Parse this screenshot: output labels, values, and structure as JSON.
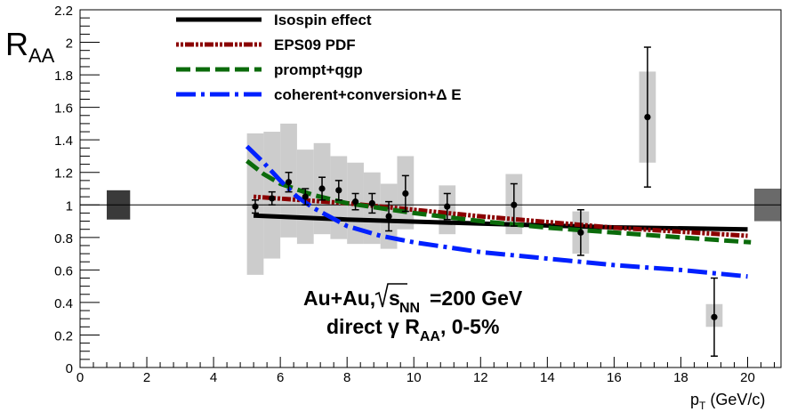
{
  "chart_data": {
    "type": "scatter",
    "title": "",
    "xlabel": "p_T (GeV/c)",
    "ylabel": "R_AA",
    "xlim": [
      0,
      21
    ],
    "ylim": [
      0,
      2.2
    ],
    "xticks": [
      0,
      2,
      4,
      6,
      8,
      10,
      12,
      14,
      16,
      18,
      20
    ],
    "yticks": [
      0,
      0.2,
      0.4,
      0.6,
      0.8,
      1,
      1.2,
      1.4,
      1.6,
      1.8,
      2,
      2.2
    ],
    "xtick_labels": [
      "0",
      "2",
      "4",
      "6",
      "8",
      "10",
      "12",
      "14",
      "16",
      "18",
      "20"
    ],
    "ytick_labels": [
      "0",
      "0.2",
      "0.4",
      "0.6",
      "0.8",
      "1",
      "1.2",
      "1.4",
      "1.6",
      "1.8",
      "2",
      "2.2"
    ],
    "grid": false,
    "legend_position": "top-left",
    "reference_line": 1,
    "normalization_boxes": [
      {
        "x": [
          0.8,
          1.5
        ],
        "y": [
          0.91,
          1.09
        ],
        "color": "#3a3a3a"
      },
      {
        "x": [
          20.2,
          21.0
        ],
        "y": [
          0.9,
          1.1
        ],
        "color": "#6a6a6a"
      }
    ],
    "data_points": [
      {
        "x": 5.25,
        "y": 0.99,
        "stat_err": 0.04,
        "sys_low": 0.57,
        "sys_high": 1.44,
        "sys_width": 0.5
      },
      {
        "x": 5.75,
        "y": 1.04,
        "stat_err": 0.04,
        "sys_low": 0.67,
        "sys_high": 1.45,
        "sys_width": 0.5
      },
      {
        "x": 6.25,
        "y": 1.14,
        "stat_err": 0.06,
        "sys_low": 0.8,
        "sys_high": 1.5,
        "sys_width": 0.5
      },
      {
        "x": 6.75,
        "y": 1.05,
        "stat_err": 0.05,
        "sys_low": 0.76,
        "sys_high": 1.34,
        "sys_width": 0.5
      },
      {
        "x": 7.25,
        "y": 1.1,
        "stat_err": 0.07,
        "sys_low": 0.82,
        "sys_high": 1.38,
        "sys_width": 0.5
      },
      {
        "x": 7.75,
        "y": 1.09,
        "stat_err": 0.06,
        "sys_low": 0.79,
        "sys_high": 1.3,
        "sys_width": 0.5
      },
      {
        "x": 8.25,
        "y": 1.02,
        "stat_err": 0.05,
        "sys_low": 0.76,
        "sys_high": 1.26,
        "sys_width": 0.5
      },
      {
        "x": 8.75,
        "y": 1.01,
        "stat_err": 0.06,
        "sys_low": 0.76,
        "sys_high": 1.2,
        "sys_width": 0.5
      },
      {
        "x": 9.25,
        "y": 0.93,
        "stat_err": 0.09,
        "sys_low": 0.73,
        "sys_high": 1.13,
        "sys_width": 0.5
      },
      {
        "x": 9.75,
        "y": 1.07,
        "stat_err": 0.11,
        "sys_low": 0.85,
        "sys_high": 1.3,
        "sys_width": 0.5
      },
      {
        "x": 11.0,
        "y": 0.99,
        "stat_err": 0.08,
        "sys_low": 0.82,
        "sys_high": 1.12,
        "sys_width": 0.5
      },
      {
        "x": 13.0,
        "y": 1.0,
        "stat_err": 0.13,
        "sys_low": 0.82,
        "sys_high": 1.19,
        "sys_width": 0.5
      },
      {
        "x": 15.0,
        "y": 0.83,
        "stat_err": 0.14,
        "sys_low": 0.7,
        "sys_high": 0.96,
        "sys_width": 0.5
      },
      {
        "x": 17.0,
        "y": 1.54,
        "stat_err": 0.43,
        "sys_low": 1.26,
        "sys_high": 1.82,
        "sys_width": 0.5
      },
      {
        "x": 19.0,
        "y": 0.31,
        "stat_err": 0.24,
        "sys_low": 0.25,
        "sys_high": 0.39,
        "sys_width": 0.5
      }
    ],
    "series": [
      {
        "name": "Isospin effect",
        "color": "#000000",
        "style": "solid",
        "points": [
          [
            5.2,
            0.935
          ],
          [
            8,
            0.91
          ],
          [
            12,
            0.885
          ],
          [
            16,
            0.862
          ],
          [
            20,
            0.85
          ]
        ]
      },
      {
        "name": "EPS09 PDF",
        "color": "#8b0000",
        "style": "dotted",
        "points": [
          [
            5.2,
            1.05
          ],
          [
            8,
            1.01
          ],
          [
            12,
            0.93
          ],
          [
            16,
            0.86
          ],
          [
            20,
            0.81
          ]
        ]
      },
      {
        "name": "prompt+qgp",
        "color": "#0b6b0b",
        "style": "dashed",
        "points": [
          [
            5.0,
            1.27
          ],
          [
            5.5,
            1.19
          ],
          [
            6,
            1.13
          ],
          [
            7,
            1.06
          ],
          [
            8,
            1.01
          ],
          [
            10,
            0.95
          ],
          [
            12,
            0.9
          ],
          [
            14,
            0.86
          ],
          [
            16,
            0.83
          ],
          [
            18,
            0.8
          ],
          [
            20.1,
            0.77
          ]
        ]
      },
      {
        "name": "coherent+conversion+Δ E",
        "color": "#0020ff",
        "style": "dashdot",
        "points": [
          [
            5.0,
            1.36
          ],
          [
            5.5,
            1.26
          ],
          [
            6,
            1.15
          ],
          [
            6.5,
            1.05
          ],
          [
            7,
            0.98
          ],
          [
            8,
            0.87
          ],
          [
            9,
            0.81
          ],
          [
            10,
            0.77
          ],
          [
            12,
            0.71
          ],
          [
            14,
            0.67
          ],
          [
            16,
            0.63
          ],
          [
            18,
            0.6
          ],
          [
            20,
            0.56
          ]
        ]
      }
    ],
    "annotation": {
      "line1": {
        "system": "Au+Au,",
        "root": "s",
        "root_sub": "NN",
        "energy": "=200 GeV"
      },
      "line2": {
        "prefix": "direct γ R",
        "sub": "AA",
        "suffix": ", 0-5%"
      }
    }
  }
}
